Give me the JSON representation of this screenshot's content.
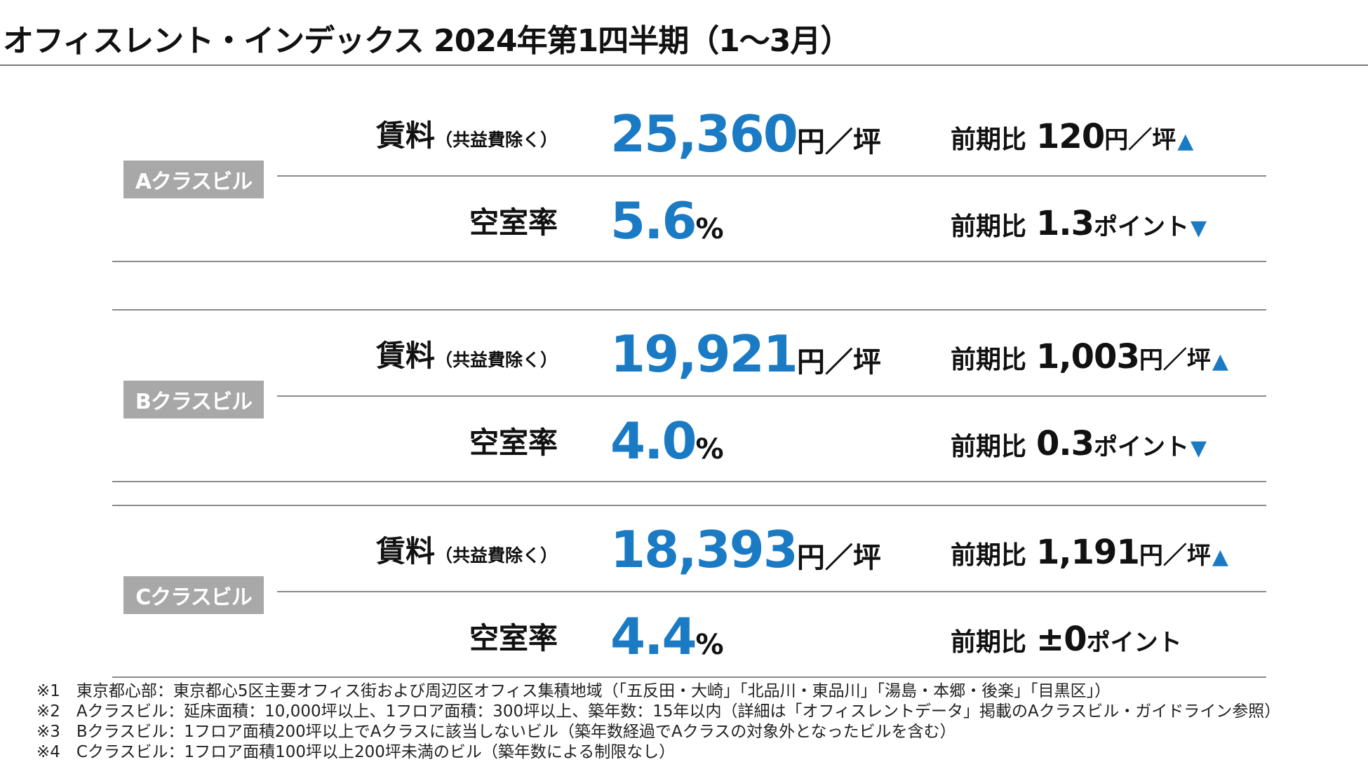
{
  "title": "オフィスレント・インデックス 2024年第1四半期（1〜3月）",
  "sections": [
    {
      "label": "Aクラスビル",
      "rent": {
        "metric": "賃料",
        "sub": "（共益費除く）",
        "value": "25,360",
        "unit": "円／坪",
        "cmp_label": "前期比",
        "cmp_value": "120",
        "cmp_unit": "円／坪",
        "arrow": "▲"
      },
      "vacancy": {
        "metric": "空室率",
        "value": "5.6",
        "unit": "%",
        "cmp_label": "前期比",
        "cmp_value": "1.3",
        "cmp_unit": "ポイント",
        "arrow": "▼"
      }
    },
    {
      "label": "Bクラスビル",
      "rent": {
        "metric": "賃料",
        "sub": "（共益費除く）",
        "value": "19,921",
        "unit": "円／坪",
        "cmp_label": "前期比",
        "cmp_value": "1,003",
        "cmp_unit": "円／坪",
        "arrow": "▲"
      },
      "vacancy": {
        "metric": "空室率",
        "value": "4.0",
        "unit": "%",
        "cmp_label": "前期比",
        "cmp_value": "0.3",
        "cmp_unit": "ポイント",
        "arrow": "▼"
      }
    },
    {
      "label": "Cクラスビル",
      "rent": {
        "metric": "賃料",
        "sub": "（共益費除く）",
        "value": "18,393",
        "unit": "円／坪",
        "cmp_label": "前期比",
        "cmp_value": "1,191",
        "cmp_unit": "円／坪",
        "arrow": "▲"
      },
      "vacancy": {
        "metric": "空室率",
        "value": "4.4",
        "unit": "%",
        "cmp_label": "前期比",
        "cmp_value": "±0",
        "cmp_unit": "ポイント",
        "arrow": ""
      }
    }
  ],
  "notes": [
    "※1　東京都心部：東京都心5区主要オフィス街および周辺区オフィス集積地域（「五反田・大崎」「北品川・東品川」「湯島・本郷・後楽」「目黒区」）",
    "※2　Aクラスビル：延床面積：10,000坪以上、1フロア面積：300坪以上、築年数：15年以内（詳細は「オフィスレントデータ」掲載のAクラスビル・ガイドライン参照）",
    "※3　Bクラスビル：1フロア面積200坪以上でAクラスに該当しないビル（築年数経過でAクラスの対象外となったビルを含む）",
    "※4　Cクラスビル：1フロア面積100坪以上200坪未満のビル（築年数による制限なし）"
  ],
  "colors": {
    "accent": "#1a7bc4",
    "label_bg": "#a8a8a8",
    "rule": "#8a8a8a"
  }
}
